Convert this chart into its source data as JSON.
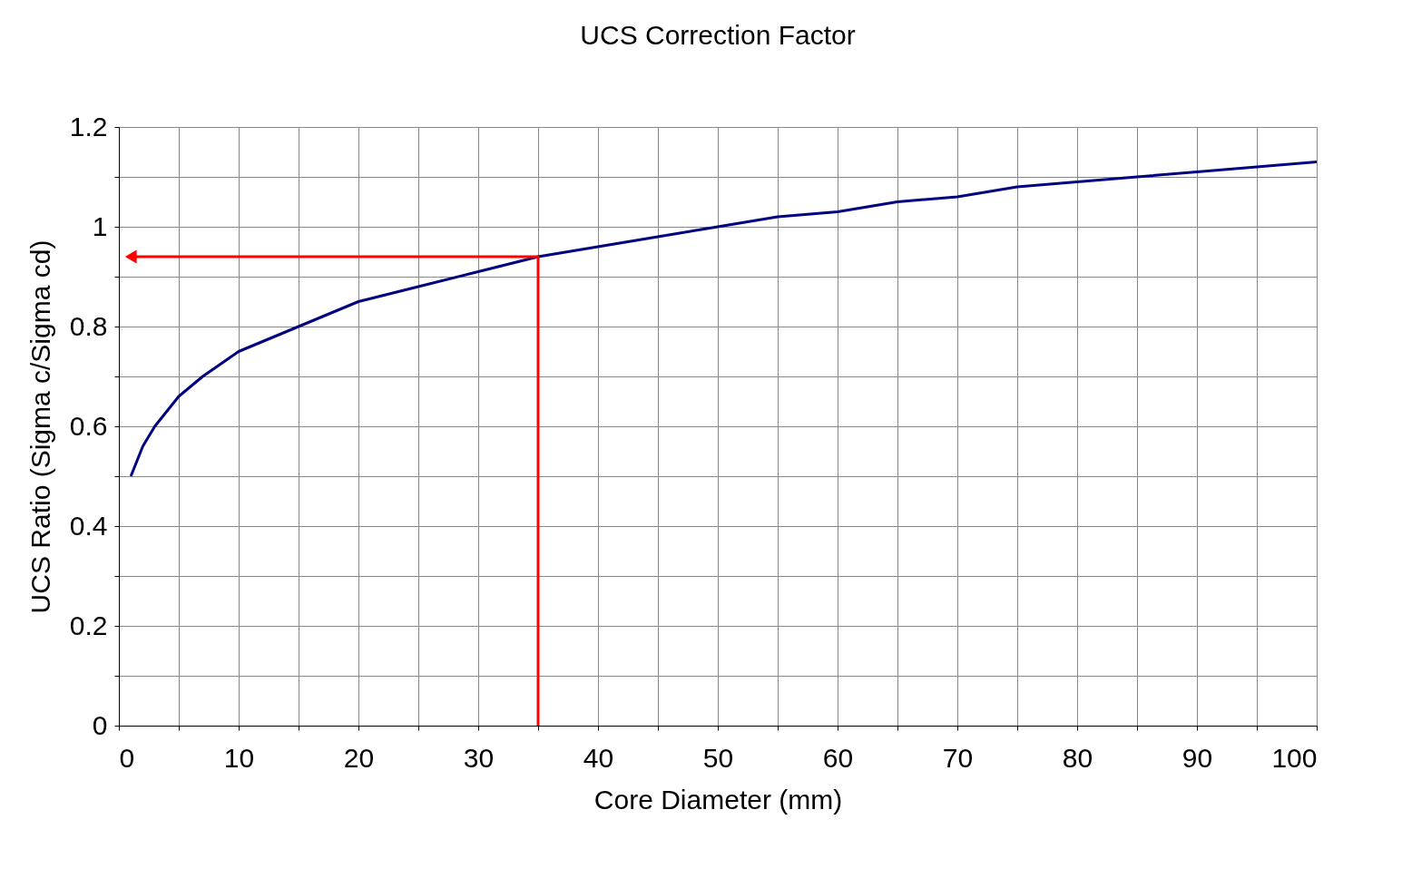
{
  "chart_data": {
    "type": "line",
    "title": "UCS Correction Factor",
    "xlabel": "Core Diameter (mm)",
    "ylabel": "UCS Ratio (Sigma c/Sigma cd)",
    "xlim": [
      0,
      100
    ],
    "ylim": [
      0,
      1.2
    ],
    "xticks": [
      0,
      {
        "value": 5,
        "label": null
      },
      10,
      {
        "value": 15,
        "label": null
      },
      20,
      {
        "value": 25,
        "label": null
      },
      30,
      {
        "value": 35,
        "label": null
      },
      40,
      {
        "value": 45,
        "label": null
      },
      50,
      {
        "value": 55,
        "label": null
      },
      60,
      {
        "value": 65,
        "label": null
      },
      70,
      {
        "value": 75,
        "label": null
      },
      80,
      {
        "value": 85,
        "label": null
      },
      90,
      {
        "value": 95,
        "label": null
      },
      100
    ],
    "yticks": [
      0,
      {
        "value": 0.1,
        "label": null
      },
      0.2,
      {
        "value": 0.3,
        "label": null
      },
      0.4,
      {
        "value": 0.5,
        "label": null
      },
      0.6,
      {
        "value": 0.7,
        "label": null
      },
      0.8,
      {
        "value": 0.9,
        "label": null
      },
      1,
      {
        "value": 1.1,
        "label": null
      },
      1.2
    ],
    "grid": true,
    "series": [
      {
        "color": "#000080",
        "x": [
          1,
          2,
          3,
          4,
          5,
          7,
          10,
          13,
          16,
          20,
          25,
          30,
          35,
          40,
          45,
          50,
          55,
          60,
          65,
          70,
          75,
          80,
          85,
          90,
          95,
          100
        ],
        "values": [
          0.5,
          0.56,
          0.6,
          0.63,
          0.66,
          0.7,
          0.75,
          0.78,
          0.81,
          0.85,
          0.88,
          0.91,
          0.94,
          0.96,
          0.98,
          1.0,
          1.02,
          1.03,
          1.05,
          1.06,
          1.08,
          1.09,
          1.1,
          1.11,
          1.12,
          1.13
        ]
      },
      {
        "color": "#ff0000",
        "x": [
          35,
          35,
          1
        ],
        "values": [
          0,
          0.94,
          0.94
        ]
      }
    ]
  }
}
